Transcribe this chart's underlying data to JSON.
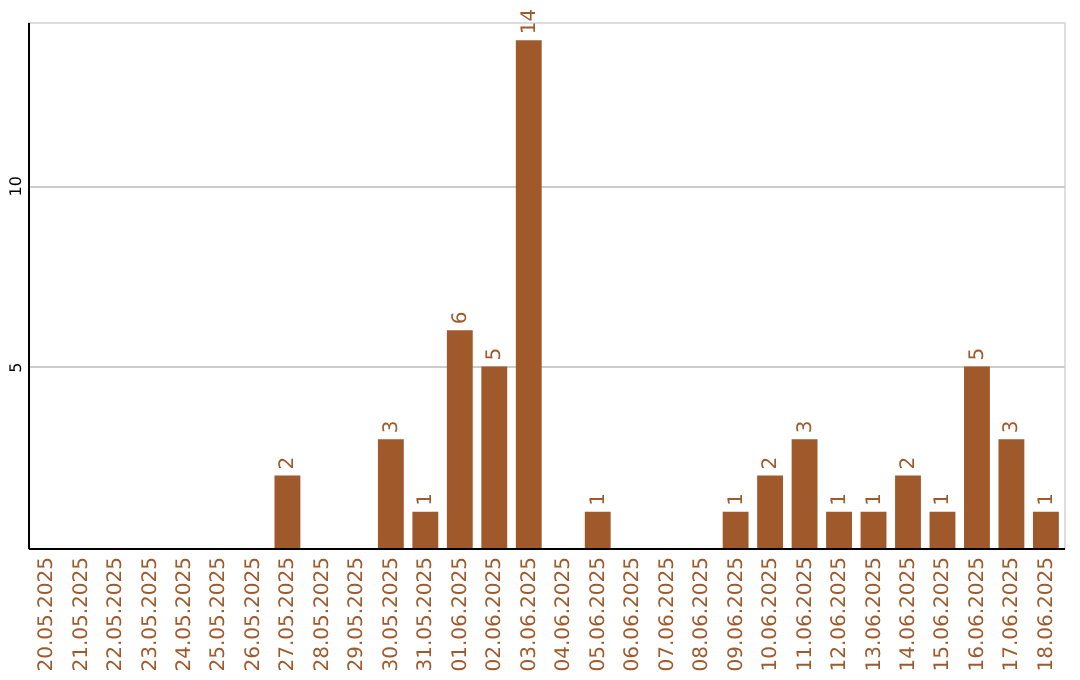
{
  "chart_data": {
    "type": "bar",
    "categories": [
      "20.05.2025",
      "21.05.2025",
      "22.05.2025",
      "23.05.2025",
      "24.05.2025",
      "25.05.2025",
      "26.05.2025",
      "27.05.2025",
      "28.05.2025",
      "29.05.2025",
      "30.05.2025",
      "31.05.2025",
      "01.06.2025",
      "02.06.2025",
      "03.06.2025",
      "04.06.2025",
      "05.06.2025",
      "06.06.2025",
      "07.06.2025",
      "08.06.2025",
      "09.06.2025",
      "10.06.2025",
      "11.06.2025",
      "12.06.2025",
      "13.06.2025",
      "14.06.2025",
      "15.06.2025",
      "16.06.2025",
      "17.06.2025",
      "18.06.2025"
    ],
    "values": [
      0,
      0,
      0,
      0,
      0,
      0,
      0,
      2,
      0,
      0,
      3,
      1,
      6,
      5,
      14,
      0,
      1,
      0,
      0,
      0,
      1,
      2,
      3,
      1,
      1,
      2,
      1,
      5,
      3,
      1
    ],
    "value_labels": [
      null,
      null,
      null,
      null,
      null,
      null,
      null,
      "2",
      null,
      null,
      "3",
      "1",
      "6",
      "5",
      "14",
      null,
      "1",
      null,
      null,
      null,
      "1",
      "2",
      "3",
      "1",
      "1",
      "2",
      "1",
      "5",
      "3",
      "1"
    ],
    "color": "#a0592b",
    "ylim": [
      0,
      14.5
    ],
    "yticks": [
      5,
      10
    ],
    "grid": "y"
  }
}
